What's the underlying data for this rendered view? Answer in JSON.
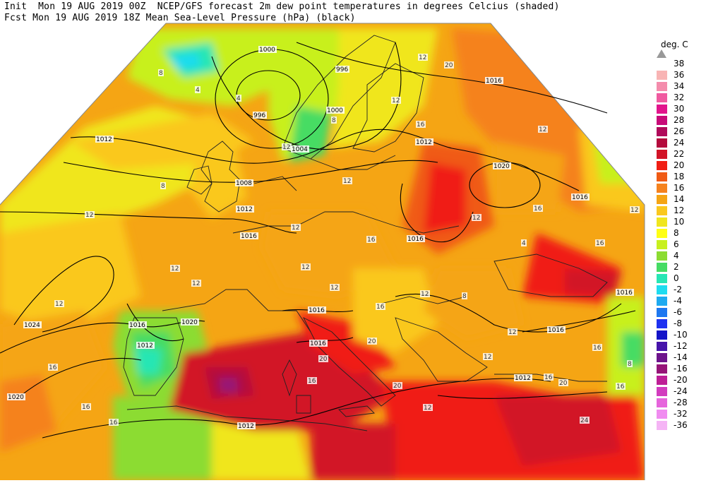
{
  "header": {
    "line1": "Init  Mon 19 AUG 2019 00Z  NCEP/GFS forecast 2m dew point temperatures in degrees Celcius (shaded)",
    "line2": "Fcst Mon 19 AUG 2019 18Z Mean Sea-Level Pressure (hPa) (black)"
  },
  "legend": {
    "unit": "deg. C",
    "items": [
      {
        "label": "38",
        "color": "#ffffff"
      },
      {
        "label": "36",
        "color": "#f8b4b4"
      },
      {
        "label": "34",
        "color": "#f48cac"
      },
      {
        "label": "32",
        "color": "#f05aa0"
      },
      {
        "label": "30",
        "color": "#e2148c"
      },
      {
        "label": "28",
        "color": "#c80a78"
      },
      {
        "label": "26",
        "color": "#b00a5a"
      },
      {
        "label": "24",
        "color": "#b40a3c"
      },
      {
        "label": "22",
        "color": "#d21428"
      },
      {
        "label": "20",
        "color": "#f01e14"
      },
      {
        "label": "18",
        "color": "#f05a14"
      },
      {
        "label": "16",
        "color": "#f5821e"
      },
      {
        "label": "14",
        "color": "#f5a514"
      },
      {
        "label": "12",
        "color": "#fac81e"
      },
      {
        "label": "10",
        "color": "#f0e61e"
      },
      {
        "label": "8",
        "color": "#ffff14"
      },
      {
        "label": "6",
        "color": "#c8f01e"
      },
      {
        "label": "4",
        "color": "#8cdc32"
      },
      {
        "label": "2",
        "color": "#46dc64"
      },
      {
        "label": "0",
        "color": "#28e6b4"
      },
      {
        "label": "-2",
        "color": "#1edcf0"
      },
      {
        "label": "-4",
        "color": "#1eaaf0"
      },
      {
        "label": "-6",
        "color": "#1e78f0"
      },
      {
        "label": "-8",
        "color": "#1e32f0"
      },
      {
        "label": "-10",
        "color": "#1414c8"
      },
      {
        "label": "-12",
        "color": "#4614aa"
      },
      {
        "label": "-14",
        "color": "#6e148c"
      },
      {
        "label": "-16",
        "color": "#961478"
      },
      {
        "label": "-20",
        "color": "#be1e96"
      },
      {
        "label": "-24",
        "color": "#d23cbe"
      },
      {
        "label": "-28",
        "color": "#e664dc"
      },
      {
        "label": "-32",
        "color": "#f08cf0"
      },
      {
        "label": "-36",
        "color": "#f5b4f5"
      }
    ]
  },
  "map": {
    "isobar_labels": [
      "1000",
      "996",
      "996",
      "1000",
      "1004",
      "1008",
      "1012",
      "1012",
      "1016",
      "1016",
      "1012",
      "1020",
      "1016",
      "1024",
      "1016",
      "1020",
      "1012",
      "1020",
      "1016",
      "1016",
      "1012",
      "1012",
      "1016",
      "1016",
      "1016"
    ],
    "dewpoint_labels": [
      "8",
      "4",
      "4",
      "8",
      "12",
      "12",
      "12",
      "12",
      "12",
      "16",
      "16",
      "16",
      "12",
      "12",
      "12",
      "12",
      "12",
      "12",
      "16",
      "16",
      "20",
      "20",
      "20",
      "16",
      "16",
      "12",
      "12",
      "8",
      "4",
      "16",
      "12",
      "8",
      "16",
      "16",
      "16",
      "20",
      "24",
      "20",
      "12",
      "16",
      "12",
      "12",
      "8",
      "12"
    ]
  }
}
